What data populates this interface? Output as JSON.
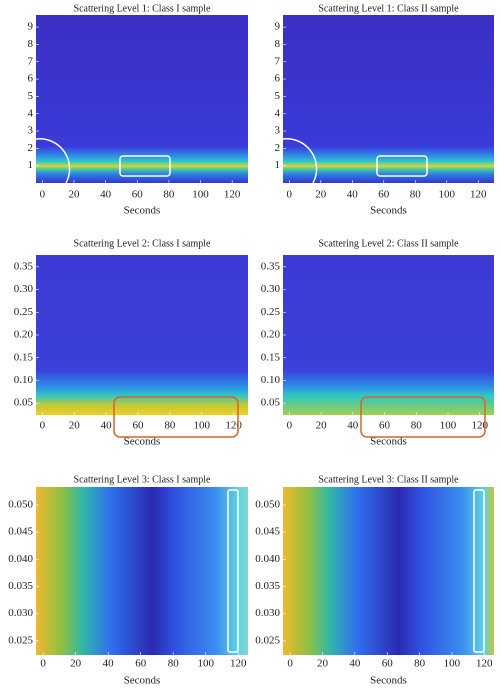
{
  "chart_data": [
    {
      "type": "heatmap",
      "title": "Scattering Level 1: Class I sample",
      "x_label": "Seconds",
      "xlim": [
        -4,
        130
      ],
      "xticks": [
        0,
        20,
        40,
        60,
        80,
        100,
        120
      ],
      "ylim": [
        0,
        9.7
      ],
      "yticks": [
        1,
        2,
        3,
        4,
        5,
        6,
        7,
        8,
        9
      ]
    },
    {
      "type": "heatmap",
      "title": "Scattering Level 1: Class II sample",
      "x_label": "Seconds",
      "xlim": [
        -4,
        130
      ],
      "xticks": [
        0,
        20,
        40,
        60,
        80,
        100,
        120
      ],
      "ylim": [
        0,
        9.7
      ],
      "yticks": [
        1,
        2,
        3,
        4,
        5,
        6,
        7,
        8,
        9
      ]
    },
    {
      "type": "heatmap",
      "title": "Scattering Level 2: Class I sample",
      "x_label": "Seconds",
      "xlim": [
        -4,
        129
      ],
      "xticks": [
        0,
        20,
        40,
        60,
        80,
        100,
        120
      ],
      "ylim": [
        0.024,
        0.376
      ],
      "yticks": [
        {
          "value": 0.05,
          "label": "0.05"
        },
        {
          "value": 0.1,
          "label": "0.10"
        },
        {
          "value": 0.15,
          "label": "0.15"
        },
        {
          "value": 0.2,
          "label": "0.20"
        },
        {
          "value": 0.25,
          "label": "0.25"
        },
        {
          "value": 0.3,
          "label": "0.30"
        },
        {
          "value": 0.35,
          "label": "0.35"
        }
      ]
    },
    {
      "type": "heatmap",
      "title": "Scattering Level 2: Class II sample",
      "x_label": "Seconds",
      "xlim": [
        -4,
        129
      ],
      "xticks": [
        0,
        20,
        40,
        60,
        80,
        100,
        120
      ],
      "ylim": [
        0.024,
        0.376
      ],
      "yticks": [
        {
          "value": 0.05,
          "label": "0.05"
        },
        {
          "value": 0.1,
          "label": "0.10"
        },
        {
          "value": 0.15,
          "label": "0.15"
        },
        {
          "value": 0.2,
          "label": "0.20"
        },
        {
          "value": 0.25,
          "label": "0.25"
        },
        {
          "value": 0.3,
          "label": "0.30"
        },
        {
          "value": 0.35,
          "label": "0.35"
        }
      ]
    },
    {
      "type": "heatmap",
      "title": "Scattering Level 3: Class I sample",
      "x_label": "Seconds",
      "xlim": [
        -4.4,
        126
      ],
      "xticks": [
        0,
        20,
        40,
        60,
        80,
        100,
        120
      ],
      "ylim": [
        0.0224,
        0.0533
      ],
      "yticks": [
        {
          "value": 0.025,
          "label": "0.025"
        },
        {
          "value": 0.03,
          "label": "0.030"
        },
        {
          "value": 0.035,
          "label": "0.035"
        },
        {
          "value": 0.04,
          "label": "0.040"
        },
        {
          "value": 0.045,
          "label": "0.045"
        },
        {
          "value": 0.05,
          "label": "0.050"
        }
      ]
    },
    {
      "type": "heatmap",
      "title": "Scattering Level 3: Class II sample",
      "x_label": "Seconds",
      "xlim": [
        -4.4,
        126
      ],
      "xticks": [
        0,
        20,
        40,
        60,
        80,
        100,
        120
      ],
      "ylim": [
        0.0224,
        0.0533
      ],
      "yticks": [
        {
          "value": 0.025,
          "label": "0.025"
        },
        {
          "value": 0.03,
          "label": "0.030"
        },
        {
          "value": 0.035,
          "label": "0.035"
        },
        {
          "value": 0.04,
          "label": "0.040"
        },
        {
          "value": 0.045,
          "label": "0.045"
        },
        {
          "value": 0.05,
          "label": "0.050"
        }
      ]
    }
  ]
}
